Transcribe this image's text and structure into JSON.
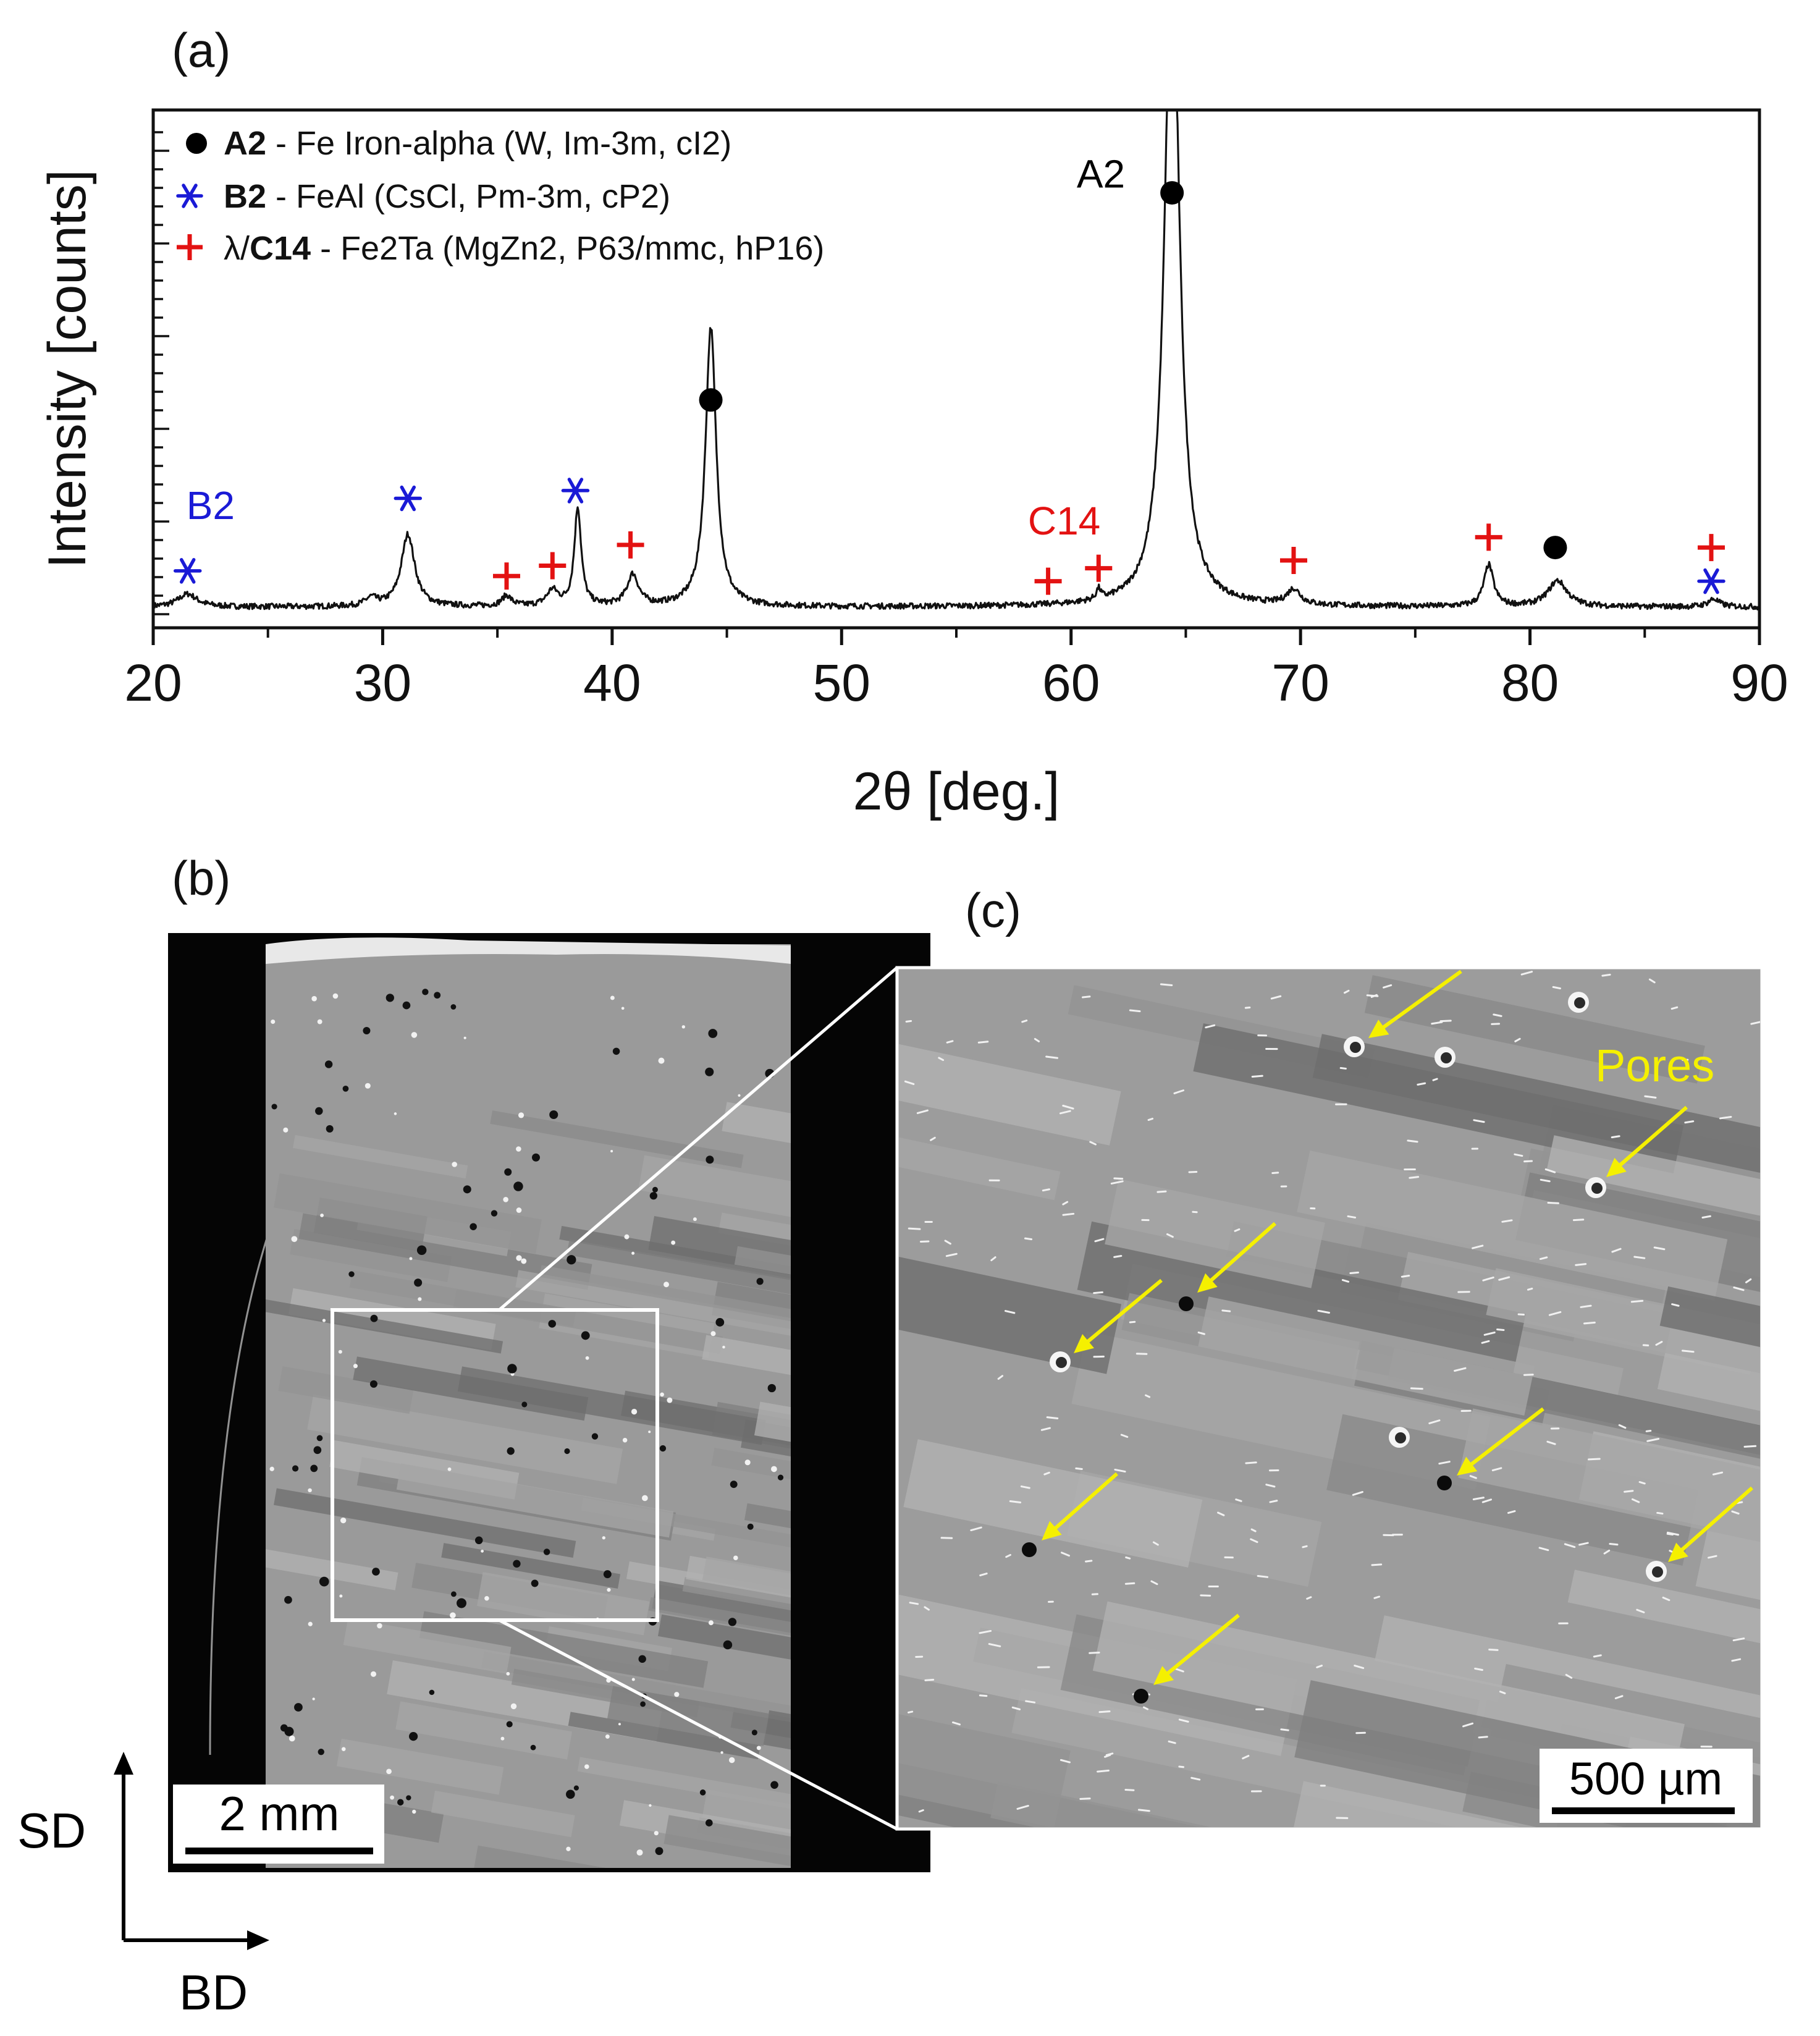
{
  "figure": {
    "panel_a": "(a)",
    "panel_b": "(b)",
    "panel_c": "(c)"
  },
  "colors": {
    "a2": "#000000",
    "b2": "#1a1ad6",
    "c14": "#e31212",
    "pores_annotation": "#f5f000",
    "curve": "#111111"
  },
  "chart_data": {
    "type": "line",
    "xlabel": "2θ [deg.]",
    "ylabel": "Intensity [counts]",
    "xlim": [
      20,
      90
    ],
    "ylim": [
      0,
      100
    ],
    "xticks": [
      20,
      30,
      40,
      50,
      60,
      70,
      80,
      90
    ],
    "grid": false,
    "legend_position": "top-left",
    "legend": [
      {
        "marker": "dot",
        "marker_name": "filled-circle-icon",
        "phase": "A2",
        "desc": " - Fe Iron-alpha (W, Im-3m, cI2)"
      },
      {
        "marker": "star",
        "marker_name": "asterisk-icon",
        "phase": "B2",
        "desc": " - FeAl (CsCl, Pm-3m, cP2)"
      },
      {
        "marker": "plus",
        "marker_name": "plus-icon",
        "prefix": "λ/",
        "phase": "C14",
        "desc": " - Fe2Ta (MgZn2, P63/mmc, hP16)"
      }
    ],
    "series": [
      {
        "baseline": 4,
        "peaks": [
          {
            "x": 21.5,
            "h": 2.5,
            "w": 0.5
          },
          {
            "x": 29.5,
            "h": 1.5,
            "w": 0.3
          },
          {
            "x": 31.1,
            "h": 14,
            "w": 0.35
          },
          {
            "x": 35.4,
            "h": 2,
            "w": 0.25
          },
          {
            "x": 37.4,
            "h": 3,
            "w": 0.3
          },
          {
            "x": 38.5,
            "h": 19,
            "w": 0.18
          },
          {
            "x": 40.9,
            "h": 6,
            "w": 0.3
          },
          {
            "x": 44.3,
            "h": 54,
            "w": 0.28
          },
          {
            "x": 61.2,
            "h": 2,
            "w": 0.12
          },
          {
            "x": 64.4,
            "h": 130,
            "w": 0.38
          },
          {
            "x": 69.7,
            "h": 3,
            "w": 0.35
          },
          {
            "x": 78.2,
            "h": 8,
            "w": 0.25
          },
          {
            "x": 81.2,
            "h": 5,
            "w": 0.5
          },
          {
            "x": 88.0,
            "h": 1.5,
            "w": 0.3
          }
        ]
      }
    ],
    "markers": [
      {
        "type": "dot",
        "x": 44.3,
        "y": 44
      },
      {
        "type": "dot",
        "x": 64.4,
        "y": 84
      },
      {
        "type": "dot",
        "x": 81.1,
        "y": 15.5
      },
      {
        "type": "star",
        "x": 21.5,
        "y": 11
      },
      {
        "type": "star",
        "x": 31.1,
        "y": 25
      },
      {
        "type": "star",
        "x": 38.4,
        "y": 26.5
      },
      {
        "type": "star",
        "x": 87.9,
        "y": 9
      },
      {
        "type": "plus",
        "x": 35.4,
        "y": 10
      },
      {
        "type": "plus",
        "x": 37.4,
        "y": 12
      },
      {
        "type": "plus",
        "x": 40.8,
        "y": 16
      },
      {
        "type": "plus",
        "x": 59.0,
        "y": 9
      },
      {
        "type": "plus",
        "x": 61.2,
        "y": 11.5
      },
      {
        "type": "plus",
        "x": 69.7,
        "y": 13
      },
      {
        "type": "plus",
        "x": 78.2,
        "y": 17.5
      },
      {
        "type": "plus",
        "x": 87.9,
        "y": 15.5
      }
    ],
    "annotations": [
      {
        "text": "B2",
        "x": 22.5,
        "y": 21,
        "color": "b2"
      },
      {
        "text": "C14",
        "x": 59.7,
        "y": 18,
        "color": "c14"
      },
      {
        "text": "A2",
        "x": 61.3,
        "y": 85,
        "color": "a2"
      }
    ]
  },
  "panel_b": {
    "scale_bar": "2 mm"
  },
  "panel_c": {
    "pores_label": "Pores",
    "scale_bar": "500 µm"
  },
  "orientation": {
    "sd": "SD",
    "bd": "BD"
  }
}
